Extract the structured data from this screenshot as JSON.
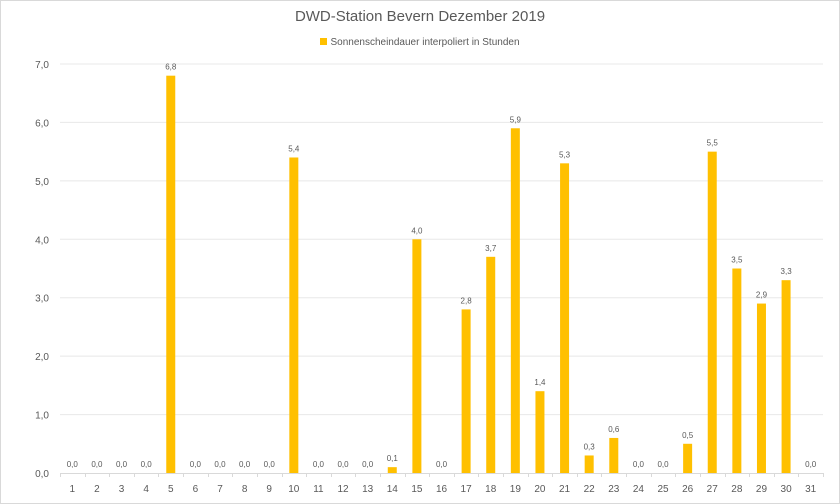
{
  "chart_data": {
    "type": "bar",
    "title": "DWD-Station Bevern Dezember 2019",
    "legend": {
      "position": "top",
      "entries": [
        "Sonnenscheindauer interpoliert in Stunden"
      ]
    },
    "categories": [
      "1",
      "2",
      "3",
      "4",
      "5",
      "6",
      "7",
      "8",
      "9",
      "10",
      "11",
      "12",
      "13",
      "14",
      "15",
      "16",
      "17",
      "18",
      "19",
      "20",
      "21",
      "22",
      "23",
      "24",
      "25",
      "26",
      "27",
      "28",
      "29",
      "30",
      "31"
    ],
    "series": [
      {
        "name": "Sonnenscheindauer interpoliert in Stunden",
        "color": "#FFC000",
        "values": [
          0,
          0,
          0,
          0,
          6.8,
          0,
          0,
          0,
          0,
          5.4,
          0,
          0,
          0,
          0.1,
          4.0,
          0,
          2.8,
          3.7,
          5.9,
          1.4,
          5.3,
          0.3,
          0.6,
          0,
          0,
          0.5,
          5.5,
          3.5,
          2.9,
          3.3,
          0
        ]
      }
    ],
    "ylim": [
      0,
      7
    ],
    "yticks": [
      "0,0",
      "1,0",
      "2,0",
      "3,0",
      "4,0",
      "5,0",
      "6,0",
      "7,0"
    ],
    "grid": true,
    "xlabel": "",
    "ylabel": "",
    "decimal_separator": ","
  }
}
